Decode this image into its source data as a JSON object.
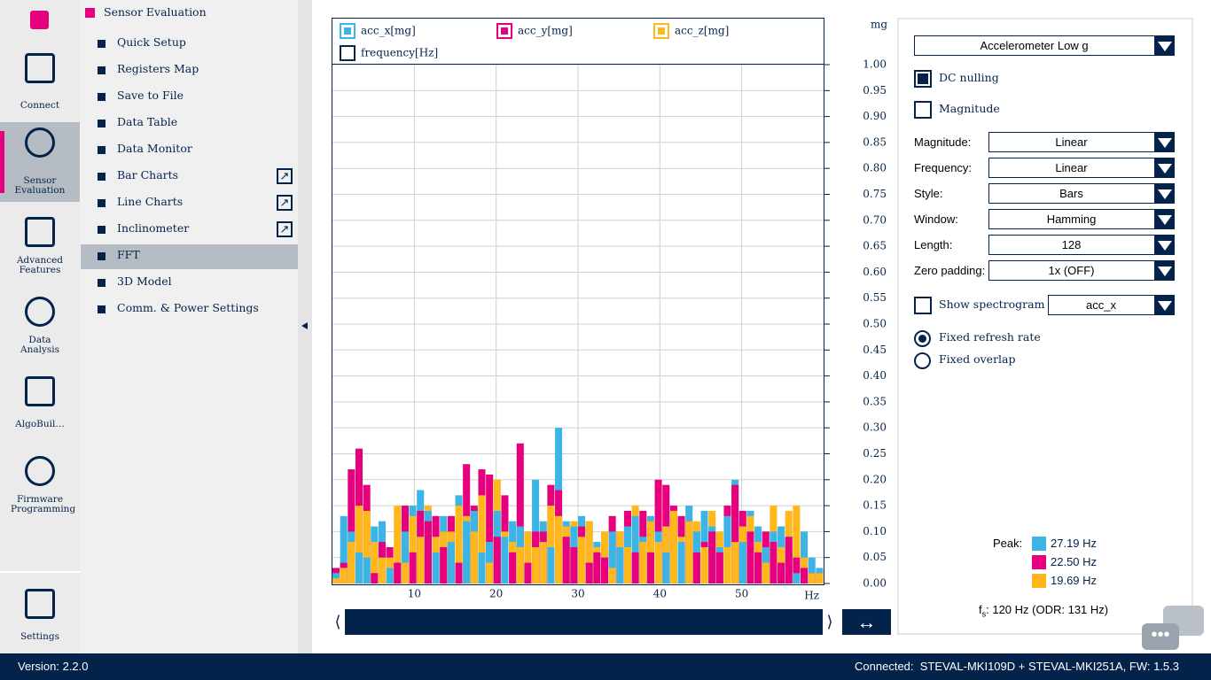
{
  "app": {
    "logo": "Sensor Evaluation"
  },
  "sidebar": {
    "items": [
      "Connect",
      "Sensor Evaluation",
      "Advanced Features",
      "Data Analysis",
      "AlgoBuil…",
      "Firmware Programming",
      "Settings"
    ]
  },
  "menu": {
    "title": "Sensor Evaluation",
    "items": [
      "Quick Setup",
      "Registers Map",
      "Save to File",
      "Data Table",
      "Data Monitor",
      "Bar Charts",
      "Line Charts",
      "Inclinometer",
      "FFT",
      "3D Model",
      "Comm. & Power Settings"
    ]
  },
  "panel": {
    "sensor": "Accelerometer Low g",
    "dc_nulling": "DC nulling",
    "magnitude": "Magnitude",
    "settings": [
      {
        "label": "Magnitude:",
        "value": "Linear"
      },
      {
        "label": "Frequency:",
        "value": "Linear"
      },
      {
        "label": "Style:",
        "value": "Bars"
      },
      {
        "label": "Window:",
        "value": "Hamming"
      },
      {
        "label": "Length:",
        "value": "128"
      },
      {
        "label": "Zero padding:",
        "value": "1x (OFF)"
      }
    ],
    "show_spectrogram": "Show spectrogram",
    "spectrogram_channel": "acc_x",
    "refresh": "Fixed refresh rate",
    "overlap": "Fixed overlap",
    "peak_label": "Peak:",
    "peaks": [
      "27.19 Hz",
      "22.50 Hz",
      "19.69 Hz"
    ],
    "fs": "f",
    "fs_sub": "s",
    "fs_text": ": 120 Hz (ODR: 131 Hz)"
  },
  "status": {
    "version": "Version: 2.2.0",
    "connected": "Connected:  STEVAL-MKI109D + STEVAL-MKI251A, FW: 1.5.3"
  },
  "chart_data": {
    "type": "bar",
    "x_label": "frequency[Hz]",
    "y_unit": "mg",
    "x_unit": "Hz",
    "x": [
      0,
      0.9375,
      1.875,
      2.8125,
      3.75,
      4.6875,
      5.625,
      6.5625,
      7.5,
      8.4375,
      9.375,
      10.3125,
      11.25,
      12.1875,
      13.125,
      14.0625,
      15,
      15.9375,
      16.875,
      17.8125,
      18.75,
      19.6875,
      20.625,
      21.5625,
      22.5,
      23.4375,
      24.375,
      25.3125,
      26.25,
      27.1875,
      28.125,
      29.0625,
      30,
      30.9375,
      31.875,
      32.8125,
      33.75,
      34.6875,
      35.625,
      36.5625,
      37.5,
      38.4375,
      39.375,
      40.3125,
      41.25,
      42.1875,
      43.125,
      44.0625,
      45,
      45.9375,
      46.875,
      47.8125,
      48.75,
      49.6875,
      50.625,
      51.5625,
      52.5,
      53.4375,
      54.375,
      55.3125,
      56.25,
      57.1875,
      58.125,
      59.0625
    ],
    "series": [
      {
        "name": "acc_x[mg]",
        "color": "#3cb4e6",
        "values": [
          0.02,
          0.13,
          0.1,
          0.06,
          0.05,
          0.11,
          0.12,
          0.03,
          0.04,
          0.1,
          0.15,
          0.18,
          0.14,
          0.06,
          0.13,
          0.08,
          0.17,
          0.12,
          0.14,
          0.06,
          0.08,
          0.14,
          0.09,
          0.12,
          0.11,
          0.1,
          0.2,
          0.12,
          0.07,
          0.3,
          0.12,
          0.11,
          0.13,
          0.12,
          0.08,
          0.05,
          0.1,
          0.07,
          0.11,
          0.13,
          0.09,
          0.13,
          0.1,
          0.06,
          0.14,
          0.08,
          0.15,
          0.1,
          0.14,
          0.11,
          0.07,
          0.13,
          0.2,
          0.08,
          0.14,
          0.11,
          0.07,
          0.1,
          0.11,
          0.09,
          0.02,
          0.1,
          0.05,
          0.03
        ]
      },
      {
        "name": "acc_y[mg]",
        "color": "#e6007e",
        "values": [
          0.03,
          0.04,
          0.22,
          0.26,
          0.19,
          0.02,
          0.08,
          0.07,
          0.04,
          0.15,
          0.06,
          0.14,
          0.12,
          0.13,
          0.07,
          0.13,
          0.04,
          0.23,
          0.15,
          0.22,
          0.21,
          0.09,
          0.17,
          0.06,
          0.27,
          0.04,
          0.1,
          0.1,
          0.19,
          0.18,
          0.09,
          0.07,
          0.11,
          0.04,
          0.06,
          0.05,
          0.13,
          0.1,
          0.14,
          0.06,
          0.14,
          0.06,
          0.2,
          0.19,
          0.15,
          0.13,
          0.12,
          0.06,
          0.08,
          0.1,
          0.06,
          0.15,
          0.19,
          0.14,
          0.1,
          0.06,
          0.1,
          0.08,
          0.04,
          0.09,
          0.05,
          0.03,
          0.02,
          0.02
        ]
      },
      {
        "name": "acc_z[mg]",
        "color": "#ffb81c",
        "values": [
          0.01,
          0.03,
          0.08,
          0.15,
          0.14,
          0.08,
          0.05,
          0.05,
          0.15,
          0.04,
          0.13,
          0.09,
          0.15,
          0.09,
          0.1,
          0.1,
          0.15,
          0.13,
          0.1,
          0.17,
          0.04,
          0.2,
          0.1,
          0.08,
          0.07,
          0.1,
          0.07,
          0.08,
          0.15,
          0.13,
          0.11,
          0.12,
          0.09,
          0.12,
          0.07,
          0.1,
          0.03,
          0.1,
          0.07,
          0.15,
          0.08,
          0.12,
          0.08,
          0.11,
          0.14,
          0.09,
          0.12,
          0.12,
          0.07,
          0.14,
          0.1,
          0.07,
          0.08,
          0.11,
          0.13,
          0.08,
          0.04,
          0.15,
          0.07,
          0.14,
          0.15,
          0.05,
          0.02,
          0.02
        ]
      }
    ],
    "xlim": [
      0,
      60
    ],
    "xticks": [
      10,
      20,
      30,
      40,
      50
    ],
    "ylim": [
      0,
      1
    ],
    "yticks": [
      {
        "value": 0,
        "label": "0.00"
      },
      0.05,
      {
        "value": 0.1,
        "label": "0.10"
      },
      0.15,
      {
        "value": 0.2,
        "label": "0.20"
      },
      0.25,
      {
        "value": 0.3,
        "label": "0.30"
      },
      0.35,
      {
        "value": 0.4,
        "label": "0.40"
      },
      0.45,
      {
        "value": 0.5,
        "label": "0.50"
      },
      0.55,
      {
        "value": 0.6,
        "label": "0.60"
      },
      0.65,
      {
        "value": 0.7,
        "label": "0.70"
      },
      0.75,
      {
        "value": 0.8,
        "label": "0.80"
      },
      0.85,
      {
        "value": 0.9,
        "label": "0.90"
      },
      0.95,
      {
        "value": 1,
        "label": "1.00"
      }
    ],
    "grid": true
  }
}
